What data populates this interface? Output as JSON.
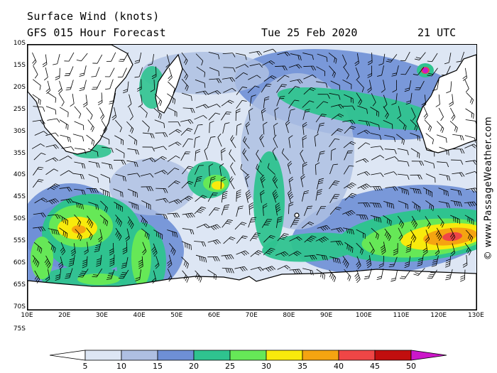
{
  "title_line1": "Surface Wind (knots)",
  "title_line2": "GFS 015 Hour Forecast",
  "date": "Tue 25 Feb 2020",
  "time": "21 UTC",
  "credit": "© www.PassageWeather.com",
  "lat_labels": [
    "10S",
    "15S",
    "20S",
    "25S",
    "30S",
    "35S",
    "40S",
    "45S",
    "50S",
    "55S",
    "60S",
    "65S",
    "70S",
    "75S"
  ],
  "lon_labels": [
    "10E",
    "20E",
    "30E",
    "40E",
    "50E",
    "60E",
    "70E",
    "80E",
    "90E",
    "100E",
    "110E",
    "120E",
    "130E"
  ],
  "colorbar": {
    "labels": [
      "5",
      "10",
      "15",
      "20",
      "25",
      "30",
      "35",
      "40",
      "45",
      "50"
    ],
    "colors": [
      "#ffffff",
      "#dde6f4",
      "#aebfe2",
      "#6e8fd6",
      "#2fc38f",
      "#66e857",
      "#f8ea0c",
      "#f5a411",
      "#ef4646",
      "#c10e0e",
      "#cc17c9"
    ]
  },
  "colors": {
    "land": "#ffffff",
    "ocean_bg": "#dde6f4",
    "coast": "#000000",
    "barb": "#000000"
  }
}
